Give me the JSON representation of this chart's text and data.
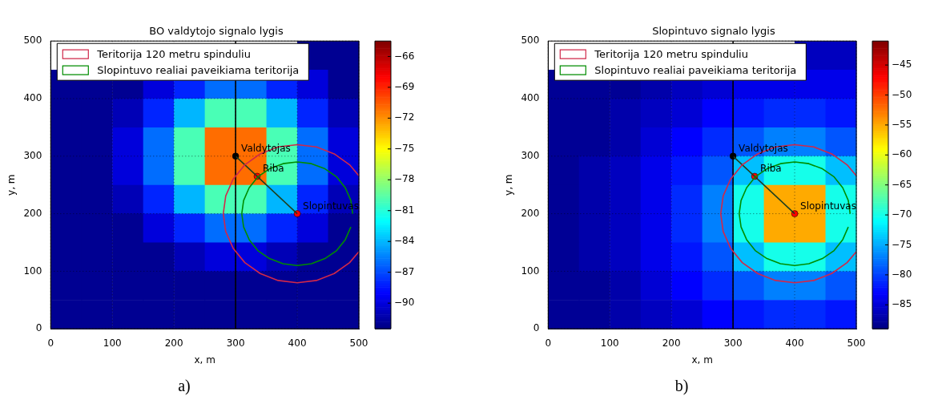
{
  "chart_data": [
    {
      "type": "heatmap",
      "title": "BO valdytojo signalo lygis",
      "xlabel": "x, m",
      "ylabel": "y, m",
      "xlim": [
        0,
        500
      ],
      "ylim": [
        0,
        500
      ],
      "xticks": [
        0,
        100,
        200,
        300,
        400,
        500
      ],
      "yticks": [
        0,
        100,
        200,
        300,
        400,
        500
      ],
      "grid": true,
      "legend": "top left",
      "clim": [
        -92.5,
        -64.5
      ],
      "cticks": [
        -66,
        -69,
        -72,
        -75,
        -78,
        -81,
        -84,
        -87,
        -90
      ],
      "cells": [
        [
          null,
          null,
          null,
          null,
          null,
          null,
          null,
          null,
          -92,
          -92
        ],
        [
          -92,
          -92,
          -92,
          -90,
          -88,
          -86,
          -86,
          -88,
          -90,
          -92
        ],
        [
          -92,
          -92,
          -91,
          -88,
          -84,
          -80,
          -80,
          -84,
          -88,
          -91
        ],
        [
          -92,
          -92,
          -90,
          -86,
          -80,
          -71,
          -71,
          -80,
          -86,
          -90
        ],
        [
          -92,
          -92,
          -90,
          -86,
          -80,
          -71,
          -71,
          -80,
          -86,
          -90
        ],
        [
          -92,
          -92,
          -91,
          -88,
          -84,
          -80,
          -80,
          -84,
          -88,
          -91
        ],
        [
          -92,
          -92,
          -92,
          -90,
          -88,
          -86,
          -86,
          -88,
          -90,
          -92
        ],
        [
          -92,
          -92,
          -92,
          -92,
          -91,
          -90,
          -90,
          -91,
          -92,
          -92
        ],
        [
          -92,
          -92,
          -92,
          -92,
          -92,
          -92,
          -92,
          -92,
          -92,
          -92
        ],
        [
          -92,
          -92,
          -92,
          -92,
          -92,
          -92,
          -92,
          -92,
          -92,
          -92
        ]
      ],
      "series": [
        {
          "type": "line",
          "name": "Teritorija 120 metru spinduliu",
          "color": "#d0284a",
          "x": [
            500,
            485,
            460,
            431,
            400,
            369,
            340,
            315,
            296,
            284,
            280,
            284,
            296,
            315,
            340,
            369,
            400,
            431,
            460,
            485,
            500
          ],
          "values": [
            266,
            285,
            304,
            316,
            320,
            316,
            304,
            285,
            260,
            231,
            200,
            169,
            140,
            115,
            96,
            84,
            80,
            84,
            96,
            115,
            134
          ]
        },
        {
          "type": "line",
          "name": "Slopintuvo realiai paveikiama teritorija",
          "color": "#008c00",
          "x": [
            490,
            487,
            478,
            464,
            445,
            423,
            400,
            377,
            355,
            336,
            322,
            313,
            310,
            313,
            322,
            336,
            355,
            377,
            400,
            423,
            445,
            464,
            478,
            487
          ],
          "values": [
            200,
            223,
            245,
            264,
            278,
            287,
            290,
            287,
            278,
            264,
            245,
            223,
            200,
            177,
            155,
            136,
            122,
            113,
            110,
            113,
            122,
            136,
            155,
            177
          ]
        },
        {
          "type": "line",
          "color": "#000000",
          "x": [
            300,
            300
          ],
          "values": [
            0,
            500
          ]
        },
        {
          "type": "line",
          "color": "#1e3f1e",
          "x": [
            300,
            400
          ],
          "values": [
            300,
            200
          ]
        },
        {
          "type": "scatter",
          "marker": "circle",
          "colors": [
            "#000000",
            "#ff0000",
            "#ff0000"
          ],
          "x": [
            300,
            335,
            400
          ],
          "values": [
            300,
            265,
            200
          ]
        }
      ],
      "annotations": [
        {
          "text": "Valdytojas",
          "x": 300,
          "y": 300
        },
        {
          "text": "Riba",
          "x": 335,
          "y": 265
        },
        {
          "text": "Slopintuvas",
          "x": 400,
          "y": 200
        },
        "a)"
      ]
    },
    {
      "type": "heatmap",
      "title": "Slopintuvo signalo lygis",
      "xlabel": "x, m",
      "ylabel": "y, m",
      "xlim": [
        0,
        500
      ],
      "ylim": [
        0,
        500
      ],
      "xticks": [
        0,
        100,
        200,
        300,
        400,
        500
      ],
      "yticks": [
        0,
        100,
        200,
        300,
        400,
        500
      ],
      "grid": true,
      "legend": "top left",
      "clim": [
        -89,
        -41
      ],
      "cticks": [
        -45,
        -50,
        -55,
        -60,
        -65,
        -70,
        -75,
        -80,
        -85
      ],
      "cells": [
        [
          null,
          null,
          null,
          null,
          null,
          null,
          null,
          null,
          -86,
          -86
        ],
        [
          -88,
          -88,
          -88,
          -87,
          -86,
          -85,
          -84,
          -84,
          -84,
          -84
        ],
        [
          -88,
          -88,
          -87,
          -86,
          -85,
          -83,
          -82,
          -81,
          -81,
          -82
        ],
        [
          -88,
          -88,
          -87,
          -85,
          -83,
          -81,
          -79,
          -77,
          -77,
          -79
        ],
        [
          -88,
          -87,
          -86,
          -84,
          -82,
          -79,
          -74,
          -70,
          -70,
          -74
        ],
        [
          -88,
          -87,
          -86,
          -84,
          -81,
          -77,
          -70,
          -55,
          -55,
          -70
        ],
        [
          -88,
          -87,
          -86,
          -84,
          -81,
          -77,
          -70,
          -55,
          -55,
          -70
        ],
        [
          -88,
          -87,
          -86,
          -84,
          -82,
          -79,
          -74,
          -70,
          -70,
          -74
        ],
        [
          -88,
          -88,
          -87,
          -85,
          -83,
          -81,
          -79,
          -77,
          -77,
          -79
        ],
        [
          -88,
          -88,
          -87,
          -86,
          -85,
          -83,
          -82,
          -81,
          -81,
          -82
        ]
      ],
      "series": [
        {
          "type": "line",
          "name": "Teritorija 120 metru spinduliu",
          "color": "#d0284a",
          "x": [
            500,
            485,
            460,
            431,
            400,
            369,
            340,
            315,
            296,
            284,
            280,
            284,
            296,
            315,
            340,
            369,
            400,
            431,
            460,
            485,
            500
          ],
          "values": [
            266,
            285,
            304,
            316,
            320,
            316,
            304,
            285,
            260,
            231,
            200,
            169,
            140,
            115,
            96,
            84,
            80,
            84,
            96,
            115,
            134
          ]
        },
        {
          "type": "line",
          "name": "Slopintuvo realiai paveikiama teritorija",
          "color": "#008c00",
          "x": [
            490,
            487,
            478,
            464,
            445,
            423,
            400,
            377,
            355,
            336,
            322,
            313,
            310,
            313,
            322,
            336,
            355,
            377,
            400,
            423,
            445,
            464,
            478,
            487
          ],
          "values": [
            200,
            223,
            245,
            264,
            278,
            287,
            290,
            287,
            278,
            264,
            245,
            223,
            200,
            177,
            155,
            136,
            122,
            113,
            110,
            113,
            122,
            136,
            155,
            177
          ]
        },
        {
          "type": "line",
          "color": "#000000",
          "x": [
            300,
            300
          ],
          "values": [
            0,
            500
          ]
        },
        {
          "type": "line",
          "color": "#1e3f1e",
          "x": [
            300,
            400
          ],
          "values": [
            300,
            200
          ]
        },
        {
          "type": "scatter",
          "marker": "circle",
          "colors": [
            "#000000",
            "#ff0000",
            "#ff0000"
          ],
          "x": [
            300,
            335,
            400
          ],
          "values": [
            300,
            265,
            200
          ]
        }
      ],
      "annotations": [
        {
          "text": "Valdytojas",
          "x": 300,
          "y": 300
        },
        {
          "text": "Riba",
          "x": 335,
          "y": 265
        },
        {
          "text": "Slopintuvas",
          "x": 400,
          "y": 200
        },
        "b)"
      ]
    }
  ]
}
